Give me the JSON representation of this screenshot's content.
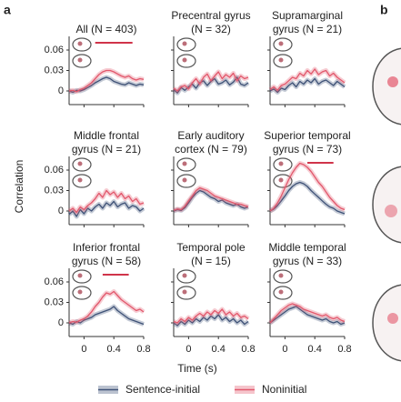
{
  "panel_labels": [
    "a",
    "b"
  ],
  "ylabel": "Correlation",
  "xlabel": "Time (s)",
  "chart_data": [
    {
      "type": "line",
      "title_lines": [
        "All (N = 403)"
      ],
      "significance": [
        0.15,
        0.65
      ],
      "x": [
        -0.2,
        -0.15,
        -0.1,
        -0.05,
        0,
        0.05,
        0.1,
        0.15,
        0.2,
        0.25,
        0.3,
        0.35,
        0.4,
        0.45,
        0.5,
        0.55,
        0.6,
        0.65,
        0.7,
        0.75,
        0.8
      ],
      "xlim": [
        -0.2,
        0.8
      ],
      "ylim": [
        -0.02,
        0.08
      ],
      "xticks": [
        0,
        0.4,
        0.8
      ],
      "yticks": [
        0,
        0.03,
        0.06
      ],
      "series": [
        {
          "name": "Sentence-initial",
          "color": "#3f5277",
          "values": [
            0,
            -0.002,
            0.001,
            0,
            0.002,
            0.005,
            0.008,
            0.012,
            0.015,
            0.018,
            0.02,
            0.018,
            0.014,
            0.012,
            0.01,
            0.009,
            0.012,
            0.01,
            0.008,
            0.01,
            0.009
          ]
        },
        {
          "name": "Noninitial",
          "color": "#e2586c",
          "values": [
            0,
            0.001,
            -0.001,
            0.002,
            0.004,
            0.008,
            0.012,
            0.018,
            0.024,
            0.028,
            0.03,
            0.03,
            0.028,
            0.025,
            0.022,
            0.02,
            0.022,
            0.018,
            0.016,
            0.018,
            0.017
          ]
        }
      ]
    },
    {
      "type": "line",
      "title_lines": [
        "Precentral gyrus",
        "(N = 32)"
      ],
      "x": [
        -0.2,
        -0.15,
        -0.1,
        -0.05,
        0,
        0.05,
        0.1,
        0.15,
        0.2,
        0.25,
        0.3,
        0.35,
        0.4,
        0.45,
        0.5,
        0.55,
        0.6,
        0.65,
        0.7,
        0.75,
        0.8
      ],
      "xlim": [
        -0.2,
        0.8
      ],
      "ylim": [
        -0.02,
        0.08
      ],
      "xticks": [
        0,
        0.4,
        0.8
      ],
      "yticks": [
        0,
        0.03,
        0.06
      ],
      "series": [
        {
          "name": "Sentence-initial",
          "color": "#3f5277",
          "values": [
            0.002,
            -0.003,
            0.005,
            0.001,
            0.006,
            0.01,
            0.004,
            0.012,
            0.015,
            0.008,
            0.014,
            0.018,
            0.01,
            0.012,
            0.016,
            0.009,
            0.013,
            0.02,
            0.01,
            0.008,
            0.012
          ]
        },
        {
          "name": "Noninitial",
          "color": "#e2586c",
          "values": [
            0.004,
            0,
            0.006,
            0.008,
            0.003,
            0.012,
            0.018,
            0.01,
            0.02,
            0.025,
            0.015,
            0.022,
            0.028,
            0.018,
            0.024,
            0.02,
            0.026,
            0.015,
            0.022,
            0.018,
            0.02
          ]
        }
      ]
    },
    {
      "type": "line",
      "title_lines": [
        "Supramarginal",
        "gyrus (N = 21)"
      ],
      "x": [
        -0.2,
        -0.15,
        -0.1,
        -0.05,
        0,
        0.05,
        0.1,
        0.15,
        0.2,
        0.25,
        0.3,
        0.35,
        0.4,
        0.45,
        0.5,
        0.55,
        0.6,
        0.65,
        0.7,
        0.75,
        0.8
      ],
      "xlim": [
        -0.2,
        0.8
      ],
      "ylim": [
        -0.02,
        0.08
      ],
      "xticks": [
        0,
        0.4,
        0.8
      ],
      "yticks": [
        0,
        0.03,
        0.06
      ],
      "series": [
        {
          "name": "Sentence-initial",
          "color": "#3f5277",
          "values": [
            0,
            0.003,
            -0.002,
            0.004,
            0.002,
            0.008,
            0.012,
            0.006,
            0.014,
            0.01,
            0.016,
            0.012,
            0.018,
            0.01,
            0.014,
            0.016,
            0.012,
            0.008,
            0.014,
            0.01,
            0.006
          ]
        },
        {
          "name": "Noninitial",
          "color": "#e2586c",
          "values": [
            0.002,
            0.006,
            0.001,
            0.008,
            0.01,
            0.015,
            0.02,
            0.018,
            0.026,
            0.022,
            0.03,
            0.025,
            0.032,
            0.024,
            0.028,
            0.03,
            0.022,
            0.026,
            0.02,
            0.016,
            0.012
          ]
        }
      ]
    },
    {
      "type": "line",
      "title_lines": [
        "Middle frontal",
        "gyrus (N = 21)"
      ],
      "x": [
        -0.2,
        -0.15,
        -0.1,
        -0.05,
        0,
        0.05,
        0.1,
        0.15,
        0.2,
        0.25,
        0.3,
        0.35,
        0.4,
        0.45,
        0.5,
        0.55,
        0.6,
        0.65,
        0.7,
        0.75,
        0.8
      ],
      "xlim": [
        -0.2,
        0.8
      ],
      "ylim": [
        -0.02,
        0.08
      ],
      "xticks": [
        0,
        0.4,
        0.8
      ],
      "yticks": [
        0,
        0.03,
        0.06
      ],
      "series": [
        {
          "name": "Sentence-initial",
          "color": "#3f5277",
          "values": [
            -0.005,
            0,
            -0.008,
            0.002,
            -0.004,
            0.004,
            0,
            0.006,
            0.01,
            0.004,
            0.012,
            0.008,
            0.014,
            0.006,
            0.01,
            0.012,
            0.004,
            0.008,
            0.006,
            0,
            0.004
          ]
        },
        {
          "name": "Noninitial",
          "color": "#e2586c",
          "values": [
            0,
            0.004,
            -0.002,
            0.006,
            0.002,
            0.008,
            0.012,
            0.018,
            0.026,
            0.02,
            0.03,
            0.024,
            0.028,
            0.02,
            0.026,
            0.018,
            0.022,
            0.014,
            0.018,
            0.01,
            0.012
          ]
        }
      ]
    },
    {
      "type": "line",
      "title_lines": [
        "Early auditory",
        "cortex (N = 79)"
      ],
      "x": [
        -0.2,
        -0.15,
        -0.1,
        -0.05,
        0,
        0.05,
        0.1,
        0.15,
        0.2,
        0.25,
        0.3,
        0.35,
        0.4,
        0.45,
        0.5,
        0.55,
        0.6,
        0.65,
        0.7,
        0.75,
        0.8
      ],
      "xlim": [
        -0.2,
        0.8
      ],
      "ylim": [
        -0.02,
        0.08
      ],
      "xticks": [
        0,
        0.4,
        0.8
      ],
      "yticks": [
        0,
        0.03,
        0.06
      ],
      "series": [
        {
          "name": "Sentence-initial",
          "color": "#3f5277",
          "values": [
            0,
            0.002,
            0.001,
            0.005,
            0.012,
            0.02,
            0.026,
            0.03,
            0.028,
            0.024,
            0.02,
            0.018,
            0.014,
            0.016,
            0.012,
            0.01,
            0.008,
            0.01,
            0.006,
            0.004,
            0.006
          ]
        },
        {
          "name": "Noninitial",
          "color": "#e2586c",
          "values": [
            0.001,
            0.003,
            0.002,
            0.007,
            0.015,
            0.022,
            0.03,
            0.034,
            0.032,
            0.03,
            0.026,
            0.022,
            0.02,
            0.018,
            0.016,
            0.014,
            0.012,
            0.01,
            0.01,
            0.008,
            0.006
          ]
        }
      ]
    },
    {
      "type": "line",
      "title_lines": [
        "Superior temporal",
        "gyrus (N = 73)"
      ],
      "significance": [
        0.3,
        0.65
      ],
      "x": [
        -0.2,
        -0.15,
        -0.1,
        -0.05,
        0,
        0.05,
        0.1,
        0.15,
        0.2,
        0.25,
        0.3,
        0.35,
        0.4,
        0.45,
        0.5,
        0.55,
        0.6,
        0.65,
        0.7,
        0.75,
        0.8
      ],
      "xlim": [
        -0.2,
        0.8
      ],
      "ylim": [
        -0.02,
        0.08
      ],
      "xticks": [
        0,
        0.4,
        0.8
      ],
      "yticks": [
        0,
        0.03,
        0.06
      ],
      "series": [
        {
          "name": "Sentence-initial",
          "color": "#3f5277",
          "values": [
            0,
            0.003,
            0.008,
            0.015,
            0.022,
            0.03,
            0.036,
            0.04,
            0.042,
            0.04,
            0.036,
            0.03,
            0.025,
            0.02,
            0.015,
            0.01,
            0.006,
            0.004,
            0,
            -0.002,
            -0.004
          ]
        },
        {
          "name": "Noninitial",
          "color": "#e2586c",
          "values": [
            0,
            0.004,
            0.012,
            0.022,
            0.034,
            0.046,
            0.056,
            0.064,
            0.07,
            0.068,
            0.064,
            0.058,
            0.05,
            0.042,
            0.036,
            0.028,
            0.02,
            0.014,
            0.008,
            0.004,
            0.002
          ]
        }
      ]
    },
    {
      "type": "line",
      "title_lines": [
        "Inferior frontal",
        "gyrus (N = 58)"
      ],
      "significance": [
        0.25,
        0.6
      ],
      "x": [
        -0.2,
        -0.15,
        -0.1,
        -0.05,
        0,
        0.05,
        0.1,
        0.15,
        0.2,
        0.25,
        0.3,
        0.35,
        0.4,
        0.45,
        0.5,
        0.55,
        0.6,
        0.65,
        0.7,
        0.75,
        0.8
      ],
      "xlim": [
        -0.2,
        0.8
      ],
      "ylim": [
        -0.02,
        0.08
      ],
      "xticks": [
        0,
        0.4,
        0.8
      ],
      "yticks": [
        0,
        0.03,
        0.06
      ],
      "series": [
        {
          "name": "Sentence-initial",
          "color": "#3f5277",
          "values": [
            0,
            -0.002,
            0.002,
            0,
            0.004,
            0.006,
            0.008,
            0.012,
            0.014,
            0.016,
            0.018,
            0.02,
            0.024,
            0.018,
            0.014,
            0.01,
            0.006,
            0.004,
            0.002,
            0,
            -0.002
          ]
        },
        {
          "name": "Noninitial",
          "color": "#e2586c",
          "values": [
            0,
            0.002,
            0.001,
            0.004,
            0.006,
            0.01,
            0.016,
            0.024,
            0.03,
            0.038,
            0.044,
            0.042,
            0.046,
            0.04,
            0.034,
            0.03,
            0.026,
            0.022,
            0.018,
            0.02,
            0.016
          ]
        }
      ]
    },
    {
      "type": "line",
      "title_lines": [
        "Temporal pole",
        "(N = 15)"
      ],
      "x": [
        -0.2,
        -0.15,
        -0.1,
        -0.05,
        0,
        0.05,
        0.1,
        0.15,
        0.2,
        0.25,
        0.3,
        0.35,
        0.4,
        0.45,
        0.5,
        0.55,
        0.6,
        0.65,
        0.7,
        0.75,
        0.8
      ],
      "xlim": [
        -0.2,
        0.8
      ],
      "ylim": [
        -0.02,
        0.08
      ],
      "xticks": [
        0,
        0.4,
        0.8
      ],
      "yticks": [
        0,
        0.03,
        0.06
      ],
      "series": [
        {
          "name": "Sentence-initial",
          "color": "#3f5277",
          "values": [
            0,
            -0.004,
            0.002,
            -0.002,
            0.004,
            0,
            0.006,
            0.002,
            0.008,
            0.004,
            0.01,
            0.006,
            0.012,
            0.004,
            0.008,
            0.002,
            0.006,
            0,
            0.004,
            -0.002,
            0.002
          ]
        },
        {
          "name": "Noninitial",
          "color": "#e2586c",
          "values": [
            0.002,
            0,
            0.006,
            0.002,
            0.008,
            0.004,
            0.01,
            0.014,
            0.01,
            0.016,
            0.012,
            0.018,
            0.014,
            0.02,
            0.012,
            0.016,
            0.01,
            0.014,
            0.008,
            0.01,
            0.006
          ]
        }
      ]
    },
    {
      "type": "line",
      "title_lines": [
        "Middle temporal",
        "gyrus (N = 33)"
      ],
      "x": [
        -0.2,
        -0.15,
        -0.1,
        -0.05,
        0,
        0.05,
        0.1,
        0.15,
        0.2,
        0.25,
        0.3,
        0.35,
        0.4,
        0.45,
        0.5,
        0.55,
        0.6,
        0.65,
        0.7,
        0.75,
        0.8
      ],
      "xlim": [
        -0.2,
        0.8
      ],
      "ylim": [
        -0.02,
        0.08
      ],
      "xticks": [
        0,
        0.4,
        0.8
      ],
      "yticks": [
        0,
        0.03,
        0.06
      ],
      "series": [
        {
          "name": "Sentence-initial",
          "color": "#3f5277",
          "values": [
            0,
            0.004,
            0.008,
            0.012,
            0.016,
            0.02,
            0.022,
            0.024,
            0.02,
            0.016,
            0.012,
            0.01,
            0.008,
            0.006,
            0.004,
            0.006,
            0.002,
            0,
            0.002,
            -0.002,
            0
          ]
        },
        {
          "name": "Noninitial",
          "color": "#e2586c",
          "values": [
            0,
            0.006,
            0.012,
            0.018,
            0.022,
            0.026,
            0.028,
            0.026,
            0.024,
            0.02,
            0.018,
            0.016,
            0.014,
            0.012,
            0.01,
            0.012,
            0.008,
            0.006,
            0.008,
            0.004,
            0.002
          ]
        }
      ]
    }
  ]
}
